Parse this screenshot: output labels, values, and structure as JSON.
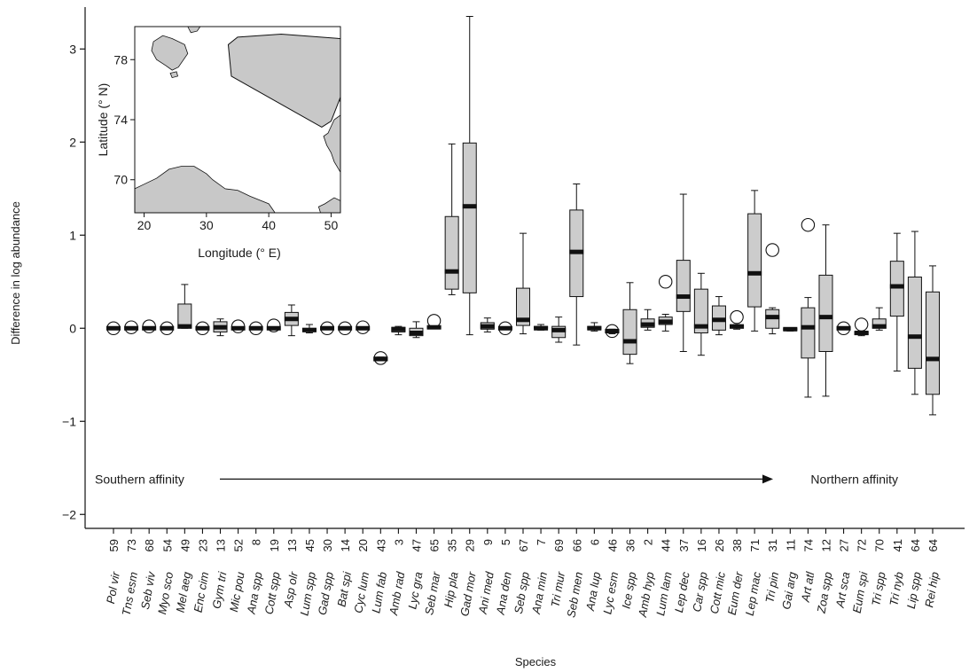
{
  "chart_data": {
    "type": "boxplot",
    "title": "",
    "xlabel": "Species",
    "ylabel": "Difference in log abundance",
    "ylim": [
      -2.15,
      3.45
    ],
    "yticks": [
      -2,
      -1,
      0,
      1,
      2,
      3
    ],
    "ytick_labels": [
      "−2",
      "−1",
      "0",
      "1",
      "2",
      "3"
    ],
    "box_fill": "#cccccc",
    "median_color": "#111111",
    "gradient_annotation": {
      "left_label": "Southern affinity",
      "right_label": "Northern affinity",
      "y": -1.62
    },
    "species": [
      {
        "name": "Pol vir",
        "n": "59",
        "box": [
          0,
          0,
          0,
          0,
          0
        ],
        "point": 0
      },
      {
        "name": "Tns esm",
        "n": "73",
        "box": [
          0,
          0,
          0,
          0,
          0
        ],
        "point": 0.01
      },
      {
        "name": "Seb viv",
        "n": "68",
        "box": [
          0,
          0,
          0,
          0,
          0
        ],
        "point": 0.02
      },
      {
        "name": "Myo sco",
        "n": "54",
        "box": [
          0,
          0,
          0,
          0,
          0
        ],
        "point": 0
      },
      {
        "name": "Mel aeg",
        "n": "49",
        "box": [
          0,
          0,
          0.02,
          0.26,
          0.47
        ],
        "point": null
      },
      {
        "name": "Enc cim",
        "n": "23",
        "box": [
          0,
          0,
          0,
          0,
          0
        ],
        "point": 0
      },
      {
        "name": "Gym tri",
        "n": "13",
        "box": [
          -0.08,
          -0.04,
          0.01,
          0.07,
          0.1
        ],
        "point": null
      },
      {
        "name": "Mic pou",
        "n": "52",
        "box": [
          0,
          0,
          0,
          0,
          0
        ],
        "point": 0.02
      },
      {
        "name": "Ana spp",
        "n": "8",
        "box": [
          0,
          0,
          0,
          0,
          0
        ],
        "point": 0
      },
      {
        "name": "Cott spp",
        "n": "19",
        "box": [
          0,
          0,
          0,
          0,
          0
        ],
        "point": 0.03
      },
      {
        "name": "Asp olr",
        "n": "13",
        "box": [
          -0.08,
          0.03,
          0.1,
          0.17,
          0.25
        ],
        "point": null
      },
      {
        "name": "Lum spp",
        "n": "45",
        "box": [
          -0.05,
          -0.03,
          -0.02,
          0,
          0.04
        ],
        "point": null
      },
      {
        "name": "Gad spp",
        "n": "30",
        "box": [
          0,
          0,
          0,
          0,
          0
        ],
        "point": 0
      },
      {
        "name": "Bat spi",
        "n": "14",
        "box": [
          0,
          0,
          0,
          0,
          0
        ],
        "point": 0
      },
      {
        "name": "Cyc lum",
        "n": "20",
        "box": [
          0,
          0,
          0,
          0,
          0
        ],
        "point": 0.01
      },
      {
        "name": "Lum fab",
        "n": "43",
        "box": [
          -0.35,
          -0.35,
          -0.33,
          -0.31,
          -0.31
        ],
        "point": -0.32
      },
      {
        "name": "Amb rad",
        "n": "3",
        "box": [
          -0.07,
          -0.04,
          -0.01,
          0.01,
          0.02
        ],
        "point": null
      },
      {
        "name": "Lyc gra",
        "n": "47",
        "box": [
          -0.1,
          -0.08,
          -0.05,
          0,
          0.07
        ],
        "point": null
      },
      {
        "name": "Seb mar",
        "n": "65",
        "box": [
          0,
          0,
          0.01,
          0.02,
          0.02
        ],
        "point": 0.08
      },
      {
        "name": "Hip pla",
        "n": "35",
        "box": [
          0.36,
          0.42,
          0.61,
          1.2,
          1.98
        ],
        "point": null
      },
      {
        "name": "Gad mor",
        "n": "29",
        "box": [
          -0.07,
          0.38,
          1.31,
          1.99,
          3.35
        ],
        "point": null
      },
      {
        "name": "Ani med",
        "n": "9",
        "box": [
          -0.04,
          -0.01,
          0.02,
          0.06,
          0.11
        ],
        "point": null
      },
      {
        "name": "Ana den",
        "n": "5",
        "box": [
          0,
          0,
          0,
          0,
          0
        ],
        "point": 0
      },
      {
        "name": "Seb spp",
        "n": "67",
        "box": [
          -0.06,
          0.03,
          0.09,
          0.43,
          1.02
        ],
        "point": null
      },
      {
        "name": "Ana min",
        "n": "7",
        "box": [
          -0.02,
          0,
          0,
          0.02,
          0.04
        ],
        "point": null
      },
      {
        "name": "Tri mur",
        "n": "69",
        "box": [
          -0.15,
          -0.1,
          -0.02,
          0.02,
          0.12
        ],
        "point": null
      },
      {
        "name": "Seb men",
        "n": "66",
        "box": [
          -0.18,
          0.34,
          0.82,
          1.27,
          1.55
        ],
        "point": null
      },
      {
        "name": "Ana lup",
        "n": "6",
        "box": [
          -0.03,
          -0.01,
          0,
          0.02,
          0.06
        ],
        "point": null
      },
      {
        "name": "Lyc esm",
        "n": "46",
        "box": [
          -0.06,
          -0.05,
          -0.03,
          -0.02,
          -0.01
        ],
        "point": -0.03
      },
      {
        "name": "Ice spp",
        "n": "36",
        "box": [
          -0.38,
          -0.28,
          -0.14,
          0.2,
          0.49
        ],
        "point": null
      },
      {
        "name": "Amb hyp",
        "n": "2",
        "box": [
          -0.02,
          0.01,
          0.04,
          0.1,
          0.2
        ],
        "point": null
      },
      {
        "name": "Lum lam",
        "n": "44",
        "box": [
          -0.03,
          0.04,
          0.07,
          0.12,
          0.15
        ],
        "point": 0.5
      },
      {
        "name": "Lep dec",
        "n": "37",
        "box": [
          -0.25,
          0.18,
          0.34,
          0.73,
          1.44
        ],
        "point": null
      },
      {
        "name": "Car spp",
        "n": "16",
        "box": [
          -0.29,
          -0.05,
          0.02,
          0.42,
          0.59
        ],
        "point": null
      },
      {
        "name": "Cott mic",
        "n": "26",
        "box": [
          -0.07,
          -0.02,
          0.09,
          0.24,
          0.34
        ],
        "point": null
      },
      {
        "name": "Eum der",
        "n": "38",
        "box": [
          -0.01,
          0,
          0.02,
          0.03,
          0.04
        ],
        "point": 0.12
      },
      {
        "name": "Lep mac",
        "n": "71",
        "box": [
          -0.03,
          0.23,
          0.59,
          1.23,
          1.48
        ],
        "point": null
      },
      {
        "name": "Tri pin",
        "n": "31",
        "box": [
          -0.06,
          0,
          0.12,
          0.2,
          0.22
        ],
        "point": 0.84
      },
      {
        "name": "Gai arg",
        "n": "11",
        "box": [
          -0.03,
          -0.02,
          -0.01,
          0,
          0
        ],
        "point": null
      },
      {
        "name": "Art atl",
        "n": "74",
        "box": [
          -0.74,
          -0.32,
          0.01,
          0.22,
          0.33
        ],
        "point": 1.11
      },
      {
        "name": "Zoa spp",
        "n": "12",
        "box": [
          -0.73,
          -0.25,
          0.12,
          0.57,
          1.11
        ],
        "point": null
      },
      {
        "name": "Art sca",
        "n": "27",
        "box": [
          0,
          0,
          0,
          0,
          0
        ],
        "point": 0
      },
      {
        "name": "Eum spi",
        "n": "72",
        "box": [
          -0.08,
          -0.07,
          -0.05,
          -0.04,
          -0.03
        ],
        "point": 0.04
      },
      {
        "name": "Tri spp",
        "n": "70",
        "box": [
          -0.02,
          0,
          0.02,
          0.1,
          0.22
        ],
        "point": null
      },
      {
        "name": "Tri nyb",
        "n": "41",
        "box": [
          -0.46,
          0.13,
          0.45,
          0.72,
          1.02
        ],
        "point": null
      },
      {
        "name": "Lip spp",
        "n": "64",
        "box": [
          -0.71,
          -0.43,
          -0.09,
          0.55,
          1.04
        ],
        "point": null
      },
      {
        "name": "Rei hip",
        "n": "64",
        "box": [
          -0.93,
          -0.71,
          -0.33,
          0.39,
          0.67
        ],
        "point": null
      }
    ],
    "inset_map": {
      "xlabel": "Longitude (° E)",
      "ylabel": "Latitude (° N)",
      "xlim": [
        18.5,
        51.5
      ],
      "ylim": [
        67.8,
        80.2
      ],
      "xticks": [
        20,
        30,
        40,
        50
      ],
      "yticks": [
        70,
        74,
        78
      ],
      "land_color": "#c8c8c8",
      "survey_area": [
        [
          35,
          79.5
        ],
        [
          42,
          79.7
        ],
        [
          51.5,
          79.4
        ],
        [
          51.5,
          75.5
        ],
        [
          50,
          73.9
        ],
        [
          48.5,
          73.5
        ],
        [
          34,
          76.9
        ],
        [
          33.5,
          79.0
        ]
      ]
    }
  }
}
